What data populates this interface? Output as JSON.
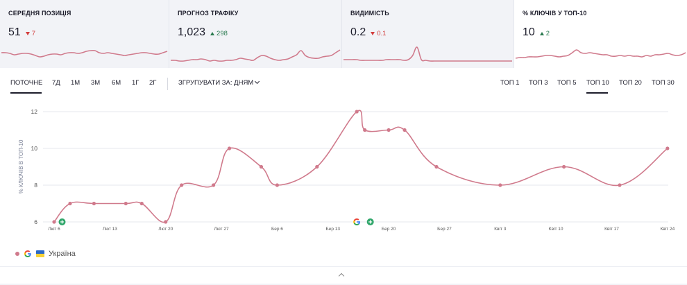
{
  "kpis": [
    {
      "title": "СЕРЕДНЯ ПОЗИЦІЯ",
      "value": "51",
      "delta": "7",
      "direction": "down",
      "spark": [
        22,
        22,
        21,
        19,
        20,
        21,
        21,
        20,
        18,
        16,
        17,
        19,
        20,
        20,
        19,
        21,
        22,
        22,
        21,
        22,
        24,
        25,
        25,
        22,
        21,
        22,
        21,
        20,
        19,
        18,
        19,
        20,
        21,
        22,
        22,
        21,
        20,
        20,
        22,
        24
      ]
    },
    {
      "title": "ПРОГНОЗ ТРАФІКУ",
      "value": "1,023",
      "delta": "298",
      "direction": "up",
      "spark": [
        11,
        11,
        10,
        10,
        11,
        12,
        12,
        13,
        12,
        10,
        11,
        10,
        10,
        11,
        11,
        12,
        14,
        13,
        12,
        11,
        15,
        18,
        17,
        14,
        12,
        11,
        12,
        13,
        16,
        19,
        25,
        18,
        15,
        14,
        14,
        16,
        17,
        18,
        22,
        26
      ]
    },
    {
      "title": "ВИДИМІСТЬ",
      "value": "0.2",
      "delta": "0.1",
      "direction": "down",
      "spark": [
        12,
        12,
        12,
        12,
        11,
        11,
        11,
        11,
        11,
        11,
        12,
        12,
        12,
        12,
        11,
        12,
        18,
        30,
        12,
        11,
        10,
        10,
        10,
        10,
        10,
        10,
        10,
        10,
        10,
        10,
        10,
        10,
        10,
        10,
        10,
        10,
        10,
        10,
        10,
        10
      ]
    },
    {
      "title": "% КЛЮЧІВ У ТОП-10",
      "value": "10",
      "delta": "2",
      "direction": "up",
      "spark": [
        14,
        15,
        15,
        16,
        16,
        16,
        17,
        18,
        18,
        17,
        16,
        17,
        18,
        22,
        26,
        22,
        21,
        22,
        21,
        20,
        19,
        19,
        17,
        17,
        18,
        17,
        18,
        17,
        17,
        16,
        18,
        17,
        19,
        19,
        20,
        21,
        19,
        18,
        19,
        22
      ]
    }
  ],
  "toolbar": {
    "timeframes": [
      "ПОТОЧНЕ",
      "7Д",
      "1М",
      "3М",
      "6М",
      "1Г",
      "2Г"
    ],
    "active_timeframe": "ПОТОЧНЕ",
    "group_by_label": "ЗГРУПУВАТИ ЗА: ДНЯМ",
    "tops": [
      "ТОП 1",
      "ТОП 3",
      "ТОП 5",
      "ТОП 10",
      "ТОП 20",
      "ТОП 30"
    ],
    "active_top": "ТОП 10"
  },
  "chart_data": {
    "type": "line",
    "ylabel": "% КЛЮЧІВ В ТОП-10",
    "ylim": [
      6,
      12
    ],
    "yticks": [
      6,
      8,
      10,
      12
    ],
    "xticks": [
      "Лют 6",
      "Лют 13",
      "Лют 20",
      "Лют 27",
      "Бер 6",
      "Бер 13",
      "Бер 20",
      "Бер 27",
      "Квіт 3",
      "Квіт 10",
      "Квіт 17",
      "Квіт 24"
    ],
    "x": [
      "Лют 6",
      "Лют 8",
      "Лют 11",
      "Лют 15",
      "Лют 17",
      "Лют 20",
      "Лют 22",
      "Лют 26",
      "Лют 28",
      "Бер 4",
      "Бер 6",
      "Бер 11",
      "Бер 16",
      "Бер 17",
      "Бер 20",
      "Бер 22",
      "Бер 26",
      "Квіт 3",
      "Квіт 11",
      "Квіт 18",
      "Квіт 24"
    ],
    "values": [
      6,
      7,
      7,
      7,
      7,
      6,
      8,
      8,
      10,
      9,
      8,
      9,
      12,
      11,
      11,
      11,
      9,
      8,
      9,
      8,
      10
    ],
    "series_color": "#d07a8c",
    "grid": true,
    "markers": [
      "Лют 7",
      "Бер 16",
      "Бер 17"
    ]
  },
  "legend": {
    "label": "Україна"
  }
}
